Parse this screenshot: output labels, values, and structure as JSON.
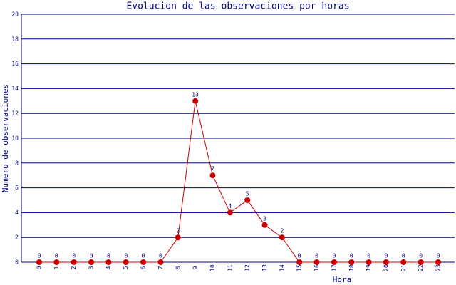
{
  "chart_data": {
    "type": "line",
    "title": "Evolucion de las observaciones por horas",
    "x_label": "Hora",
    "y_label": "Numero de observaciones",
    "categories": [
      "0",
      "1",
      "2",
      "3",
      "4",
      "5",
      "6",
      "7",
      "8",
      "9",
      "10",
      "11",
      "12",
      "13",
      "14",
      "15",
      "16",
      "17",
      "18",
      "19",
      "20",
      "21",
      "22",
      "23"
    ],
    "values": [
      0,
      0,
      0,
      0,
      0,
      0,
      0,
      0,
      2,
      13,
      7,
      4,
      5,
      3,
      2,
      0,
      0,
      0,
      0,
      0,
      0,
      0,
      0,
      0
    ],
    "color": "#cc0000",
    "ylim": [
      0,
      20
    ],
    "yticks": [
      0,
      2,
      4,
      6,
      8,
      10,
      12,
      14,
      16,
      18,
      20
    ],
    "grid": true
  }
}
